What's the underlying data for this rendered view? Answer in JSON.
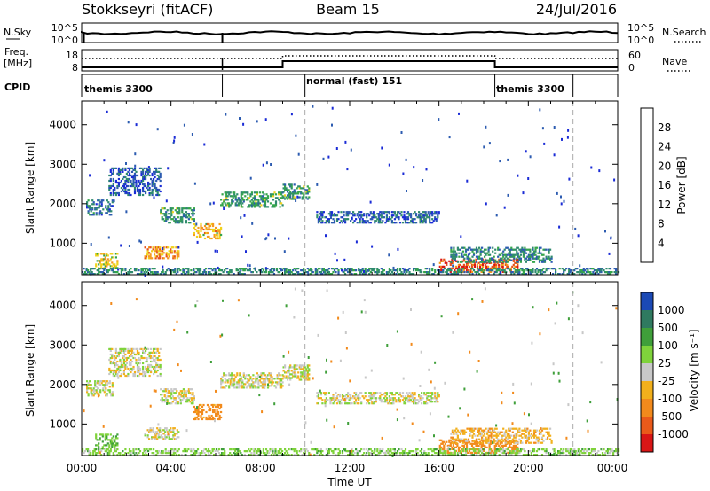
{
  "header": {
    "radar": "Stokkseyri (fitACF)",
    "beam": "Beam 15",
    "date": "24/Jul/2016"
  },
  "status_panels": {
    "sky": {
      "left_label": "N.Sky",
      "left_ticks": [
        "10^5",
        "10^0"
      ],
      "right_label": "N.Search",
      "right_ticks": [
        "10^5",
        "10^0"
      ]
    },
    "freq": {
      "left_label": "Freq.",
      "left_unit": "[MHz]",
      "left_ticks": [
        "18",
        "8"
      ],
      "right_label": "Nave",
      "right_ticks": [
        "60",
        "0"
      ]
    },
    "cpid": {
      "label": "CPID",
      "segments": [
        {
          "name": "themis 3300",
          "start_h": 0,
          "end_h": 10
        },
        {
          "name": "normal (fast) 151",
          "start_h": 10,
          "end_h": 18
        },
        {
          "name": "themis 3300",
          "start_h": 18,
          "end_h": 24
        }
      ],
      "boundaries_h": [
        6.3,
        10,
        18.5,
        22
      ]
    }
  },
  "axes": {
    "xlabel": "Time UT",
    "ylabel": "Slant Range [km]",
    "xticks": [
      "00:00",
      "04:00",
      "08:00",
      "12:00",
      "16:00",
      "20:00",
      "00:00"
    ],
    "yticks": [
      "1000",
      "2000",
      "3000",
      "4000"
    ]
  },
  "colorbars": {
    "power": {
      "label": "Power [dB]",
      "ticks": [
        "4",
        "8",
        "12",
        "16",
        "20",
        "24",
        "28"
      ],
      "colors": [
        "#1a2bd6",
        "#2c5bb0",
        "#2f8a6e",
        "#35a54b",
        "#f0d21c",
        "#f59a1e",
        "#e6531b",
        "#d91616"
      ]
    },
    "velocity": {
      "label": "Velocity [m s⁻¹]",
      "ticks": [
        "1000",
        "500",
        "100",
        "25",
        "-25",
        "-100",
        "-500",
        "-1000"
      ],
      "colors": [
        "#1b49b5",
        "#2f7a60",
        "#3f9f3a",
        "#7fd33b",
        "#c8c8c8",
        "#f2b01c",
        "#f28a1c",
        "#ea5a1a",
        "#d91616"
      ]
    }
  },
  "chart_data": [
    {
      "type": "heatmap",
      "title": "Power",
      "xlabel": "Time UT",
      "ylabel": "Slant Range [km]",
      "xlim": [
        0,
        24
      ],
      "ylim": [
        200,
        4600
      ],
      "colorbar_label": "Power [dB]",
      "colorbar_range": [
        0,
        32
      ],
      "features": [
        {
          "t": [
            0.2,
            1.4
          ],
          "r": [
            1700,
            2100
          ],
          "level": 8
        },
        {
          "t": [
            1.2,
            3.5
          ],
          "r": [
            2200,
            2900
          ],
          "level": 6
        },
        {
          "t": [
            3.5,
            5.0
          ],
          "r": [
            1500,
            1900
          ],
          "level": 12
        },
        {
          "t": [
            5.0,
            6.2
          ],
          "r": [
            1100,
            1500
          ],
          "level": 20
        },
        {
          "t": [
            6.2,
            9.0
          ],
          "r": [
            1900,
            2300
          ],
          "level": 12
        },
        {
          "t": [
            9.0,
            10.2
          ],
          "r": [
            2100,
            2500
          ],
          "level": 12
        },
        {
          "t": [
            2.8,
            4.3
          ],
          "r": [
            600,
            900
          ],
          "level": 22
        },
        {
          "t": [
            0.6,
            1.6
          ],
          "r": [
            350,
            750
          ],
          "level": 18
        },
        {
          "t": [
            10.5,
            16.0
          ],
          "r": [
            1500,
            1800
          ],
          "level": 6
        },
        {
          "t": [
            16.0,
            19.5
          ],
          "r": [
            250,
            600
          ],
          "level": 26
        },
        {
          "t": [
            16.5,
            21.0
          ],
          "r": [
            500,
            900
          ],
          "level": 10
        },
        {
          "t": [
            0.0,
            24.0
          ],
          "r": [
            200,
            380
          ],
          "level": 10
        }
      ]
    },
    {
      "type": "heatmap",
      "title": "Velocity",
      "xlabel": "Time UT",
      "ylabel": "Slant Range [km]",
      "xlim": [
        0,
        24
      ],
      "ylim": [
        200,
        4600
      ],
      "colorbar_label": "Velocity [m s⁻¹]",
      "colorbar_range": [
        -1000,
        1000
      ],
      "features": [
        {
          "t": [
            0.2,
            1.4
          ],
          "r": [
            1700,
            2100
          ],
          "vel": 0
        },
        {
          "t": [
            1.2,
            3.5
          ],
          "r": [
            2200,
            2900
          ],
          "vel": 0
        },
        {
          "t": [
            3.5,
            5.0
          ],
          "r": [
            1500,
            1900
          ],
          "vel": 0
        },
        {
          "t": [
            5.0,
            6.2
          ],
          "r": [
            1100,
            1500
          ],
          "vel": -150
        },
        {
          "t": [
            6.2,
            9.0
          ],
          "r": [
            1900,
            2300
          ],
          "vel": 0
        },
        {
          "t": [
            9.0,
            10.2
          ],
          "r": [
            2100,
            2500
          ],
          "vel": 0
        },
        {
          "t": [
            2.8,
            4.3
          ],
          "r": [
            600,
            900
          ],
          "vel": 0
        },
        {
          "t": [
            0.6,
            1.6
          ],
          "r": [
            350,
            750
          ],
          "vel": 80
        },
        {
          "t": [
            10.5,
            16.0
          ],
          "r": [
            1500,
            1800
          ],
          "vel": 0
        },
        {
          "t": [
            16.0,
            19.5
          ],
          "r": [
            250,
            600
          ],
          "vel": -300
        },
        {
          "t": [
            16.5,
            21.0
          ],
          "r": [
            500,
            900
          ],
          "vel": -60
        },
        {
          "t": [
            0.0,
            24.0
          ],
          "r": [
            200,
            380
          ],
          "vel": 60
        }
      ]
    }
  ]
}
